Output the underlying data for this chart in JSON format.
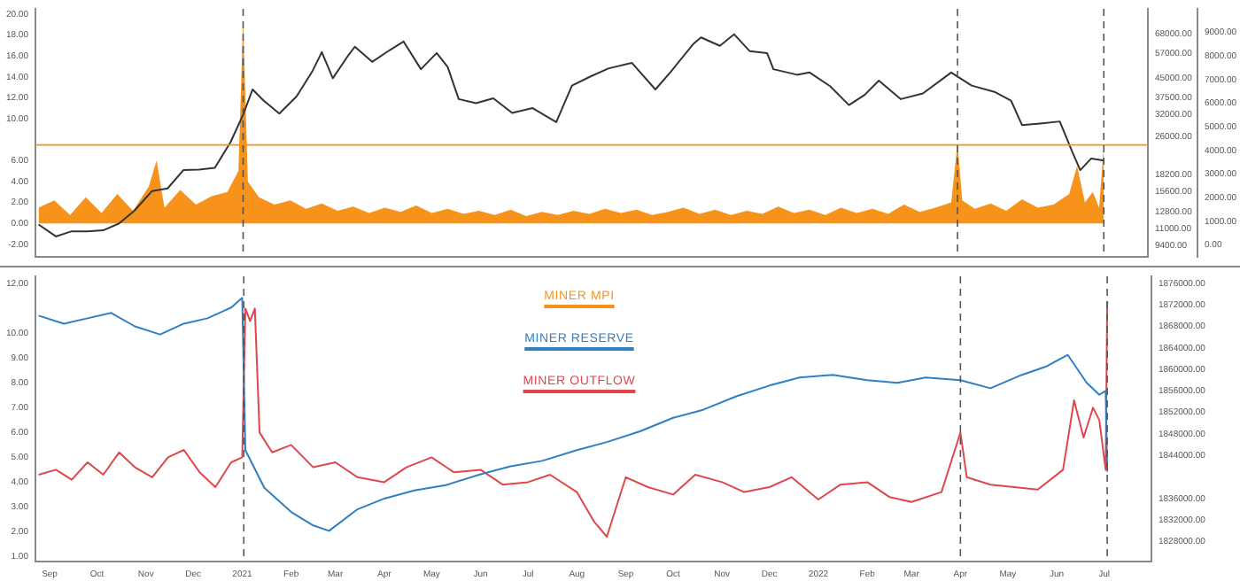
{
  "chart_data": [
    {
      "type": "line",
      "ylim": [
        -3.2,
        20.5
      ],
      "yticks": [
        {
          "value": -2,
          "label": "-2.00"
        },
        {
          "value": 0,
          "label": "0.00"
        },
        {
          "value": 2,
          "label": "2.00"
        },
        {
          "value": 4,
          "label": "4.00"
        },
        {
          "value": 6,
          "label": "6.00"
        },
        {
          "value": 10,
          "label": "10.00"
        },
        {
          "value": 12,
          "label": "12.00"
        },
        {
          "value": 14,
          "label": "14.00"
        },
        {
          "value": 16,
          "label": "16.00"
        },
        {
          "value": 18,
          "label": "18.00"
        },
        {
          "value": 20,
          "label": "20.00"
        }
      ],
      "y2lim": [
        8420,
        86300
      ],
      "log": "y2",
      "y2ticks": [
        {
          "value": 9400,
          "label": "9400.00"
        },
        {
          "value": 11000,
          "label": "11000.00"
        },
        {
          "value": 12800,
          "label": "12800.00"
        },
        {
          "value": 15600,
          "label": "15600.00"
        },
        {
          "value": 18200,
          "label": "18200.00"
        },
        {
          "value": 26000,
          "label": "26000.00"
        },
        {
          "value": 32000,
          "label": "32000.00"
        },
        {
          "value": 37500,
          "label": "37500.00"
        },
        {
          "value": 45000,
          "label": "45000.00"
        },
        {
          "value": 57000,
          "label": "57000.00"
        },
        {
          "value": 68000,
          "label": "68000.00"
        }
      ],
      "y3lim": [
        -500,
        10000
      ],
      "y3ticks": [
        {
          "value": 0,
          "label": "0.00"
        },
        {
          "value": 1000,
          "label": "1000.00"
        },
        {
          "value": 2000,
          "label": "2000.00"
        },
        {
          "value": 3000,
          "label": "3000.00"
        },
        {
          "value": 4000,
          "label": "4000.00"
        },
        {
          "value": 5000,
          "label": "5000.00"
        },
        {
          "value": 6000,
          "label": "6000.00"
        },
        {
          "value": 7000,
          "label": "7000.00"
        },
        {
          "value": 8000,
          "label": "8000.00"
        },
        {
          "value": 9000,
          "label": "9000.00"
        }
      ],
      "xlim": [
        "2020-08-23",
        "2022-07-31"
      ],
      "tick_labels": "y",
      "legend": "bottom",
      "grid": false,
      "ref_lines": [
        {
          "axis": "y",
          "value": 7.5,
          "color": "#f7931a",
          "line_style": "solid"
        },
        {
          "axis": "x",
          "value": "2021-01-02",
          "color": "#555555",
          "line_style": "dashed"
        },
        {
          "axis": "x",
          "value": "2022-04-01",
          "color": "#555555",
          "line_style": "dashed"
        },
        {
          "axis": "x",
          "value": "2022-07-03",
          "color": "#555555",
          "line_style": "dashed"
        }
      ],
      "series": [
        {
          "name": "MINER MPI",
          "type": "area",
          "color": "#f7931a",
          "x": [
            "2020-08-25",
            "2020-09-04",
            "2020-09-14",
            "2020-09-24",
            "2020-10-04",
            "2020-10-14",
            "2020-10-24",
            "2020-11-03",
            "2020-11-08",
            "2020-11-13",
            "2020-11-23",
            "2020-12-03",
            "2020-12-13",
            "2020-12-23",
            "2020-12-30",
            "2021-01-02",
            "2021-01-05",
            "2021-01-12",
            "2021-01-22",
            "2021-02-01",
            "2021-02-11",
            "2021-02-21",
            "2021-03-03",
            "2021-03-13",
            "2021-03-23",
            "2021-04-02",
            "2021-04-12",
            "2021-04-22",
            "2021-05-02",
            "2021-05-12",
            "2021-05-22",
            "2021-06-01",
            "2021-06-11",
            "2021-06-21",
            "2021-07-01",
            "2021-07-11",
            "2021-07-21",
            "2021-07-31",
            "2021-08-10",
            "2021-08-20",
            "2021-08-30",
            "2021-09-09",
            "2021-09-19",
            "2021-09-29",
            "2021-10-09",
            "2021-10-19",
            "2021-10-29",
            "2021-11-08",
            "2021-11-18",
            "2021-11-28",
            "2021-12-08",
            "2021-12-18",
            "2021-12-28",
            "2022-01-07",
            "2022-01-17",
            "2022-01-27",
            "2022-02-06",
            "2022-02-16",
            "2022-02-26",
            "2022-03-08",
            "2022-03-18",
            "2022-03-28",
            "2022-04-01",
            "2022-04-04",
            "2022-04-12",
            "2022-04-22",
            "2022-05-02",
            "2022-05-12",
            "2022-05-22",
            "2022-06-01",
            "2022-06-11",
            "2022-06-16",
            "2022-06-21",
            "2022-06-26",
            "2022-06-30",
            "2022-07-03"
          ],
          "values": [
            1.5,
            2.2,
            0.8,
            2.5,
            1.0,
            2.8,
            1.2,
            3.5,
            6.0,
            1.5,
            3.2,
            1.8,
            2.6,
            3.0,
            5.0,
            19.5,
            4.0,
            2.5,
            1.8,
            2.2,
            1.4,
            1.9,
            1.2,
            1.6,
            1.0,
            1.5,
            1.1,
            1.7,
            1.0,
            1.4,
            0.9,
            1.2,
            0.8,
            1.3,
            0.7,
            1.1,
            0.8,
            1.2,
            0.9,
            1.4,
            1.0,
            1.3,
            0.8,
            1.1,
            1.5,
            0.9,
            1.3,
            0.8,
            1.2,
            0.9,
            1.6,
            1.0,
            1.3,
            0.8,
            1.5,
            1.0,
            1.4,
            0.9,
            1.8,
            1.1,
            1.5,
            2.0,
            7.7,
            2.2,
            1.4,
            1.9,
            1.2,
            2.3,
            1.5,
            1.8,
            2.8,
            5.5,
            2.0,
            3.0,
            1.5,
            7.5
          ]
        },
        {
          "axis": "y2",
          "color": "#333333",
          "x": [
            "2020-08-25",
            "2020-09-05",
            "2020-09-15",
            "2020-09-25",
            "2020-10-05",
            "2020-10-15",
            "2020-10-25",
            "2020-11-05",
            "2020-11-15",
            "2020-11-25",
            "2020-12-05",
            "2020-12-15",
            "2020-12-25",
            "2021-01-02",
            "2021-01-08",
            "2021-01-15",
            "2021-01-25",
            "2021-02-05",
            "2021-02-15",
            "2021-02-21",
            "2021-02-28",
            "2021-03-10",
            "2021-03-14",
            "2021-03-25",
            "2021-04-05",
            "2021-04-14",
            "2021-04-25",
            "2021-05-05",
            "2021-05-12",
            "2021-05-19",
            "2021-05-30",
            "2021-06-10",
            "2021-06-22",
            "2021-07-05",
            "2021-07-20",
            "2021-07-30",
            "2021-08-10",
            "2021-08-22",
            "2021-09-06",
            "2021-09-21",
            "2021-10-01",
            "2021-10-15",
            "2021-10-20",
            "2021-11-01",
            "2021-11-10",
            "2021-11-20",
            "2021-12-01",
            "2021-12-05",
            "2021-12-20",
            "2021-12-28",
            "2022-01-10",
            "2022-01-22",
            "2022-02-01",
            "2022-02-10",
            "2022-02-24",
            "2022-03-10",
            "2022-03-28",
            "2022-04-10",
            "2022-04-25",
            "2022-05-05",
            "2022-05-12",
            "2022-05-25",
            "2022-06-05",
            "2022-06-13",
            "2022-06-18",
            "2022-06-25",
            "2022-07-03"
          ],
          "values": [
            11400,
            10200,
            10700,
            10700,
            10800,
            11500,
            13000,
            15600,
            16000,
            19000,
            19100,
            19400,
            24700,
            32000,
            40500,
            36500,
            32300,
            38000,
            48000,
            57500,
            45000,
            56000,
            60500,
            52500,
            58500,
            63500,
            49000,
            57000,
            50000,
            37000,
            35600,
            37300,
            32500,
            34000,
            29800,
            42000,
            45500,
            49300,
            52000,
            40500,
            48000,
            62000,
            66000,
            61000,
            68000,
            58000,
            57000,
            49000,
            46500,
            47500,
            41800,
            35000,
            38500,
            44000,
            37000,
            39000,
            47500,
            42000,
            39500,
            36500,
            29000,
            29500,
            30000,
            22500,
            19000,
            21200,
            20800
          ]
        }
      ]
    },
    {
      "type": "line",
      "ylim": [
        0.8,
        12.3
      ],
      "yticks": [
        {
          "value": 1,
          "label": "1.00"
        },
        {
          "value": 2,
          "label": "2.00"
        },
        {
          "value": 3,
          "label": "3.00"
        },
        {
          "value": 4,
          "label": "4.00"
        },
        {
          "value": 5,
          "label": "5.00"
        },
        {
          "value": 6,
          "label": "6.00"
        },
        {
          "value": 7,
          "label": "7.00"
        },
        {
          "value": 8,
          "label": "8.00"
        },
        {
          "value": 9,
          "label": "9.00"
        },
        {
          "value": 10,
          "label": "10.00"
        },
        {
          "value": 12,
          "label": "12.00"
        }
      ],
      "y2lim": [
        1824300,
        1877300
      ],
      "y2ticks": [
        {
          "value": 1828000,
          "label": "1828000.00"
        },
        {
          "value": 1832000,
          "label": "1832000.00"
        },
        {
          "value": 1836000,
          "label": "1836000.00"
        },
        {
          "value": 1844000,
          "label": "1844000.00"
        },
        {
          "value": 1848000,
          "label": "1848000.00"
        },
        {
          "value": 1852000,
          "label": "1852000.00"
        },
        {
          "value": 1856000,
          "label": "1856000.00"
        },
        {
          "value": 1860000,
          "label": "1860000.00"
        },
        {
          "value": 1864000,
          "label": "1864000.00"
        },
        {
          "value": 1868000,
          "label": "1868000.00"
        },
        {
          "value": 1872000,
          "label": "1872000.00"
        },
        {
          "value": 1876000,
          "label": "1876000.00"
        }
      ],
      "xlim": [
        "2020-08-23",
        "2022-07-31"
      ],
      "xticks": [
        {
          "value": "2020-09-01",
          "label": "Sep"
        },
        {
          "value": "2020-10-01",
          "label": "Oct"
        },
        {
          "value": "2020-11-01",
          "label": "Nov"
        },
        {
          "value": "2020-12-01",
          "label": "Dec"
        },
        {
          "value": "2021-01-01",
          "label": "2021"
        },
        {
          "value": "2021-02-01",
          "label": "Feb"
        },
        {
          "value": "2021-03-01",
          "label": "Mar"
        },
        {
          "value": "2021-04-01",
          "label": "Apr"
        },
        {
          "value": "2021-05-01",
          "label": "May"
        },
        {
          "value": "2021-06-01",
          "label": "Jun"
        },
        {
          "value": "2021-07-01",
          "label": "Jul"
        },
        {
          "value": "2021-08-01",
          "label": "Aug"
        },
        {
          "value": "2021-09-01",
          "label": "Sep"
        },
        {
          "value": "2021-10-01",
          "label": "Oct"
        },
        {
          "value": "2021-11-01",
          "label": "Nov"
        },
        {
          "value": "2021-12-01",
          "label": "Dec"
        },
        {
          "value": "2022-01-01",
          "label": "2022"
        },
        {
          "value": "2022-02-01",
          "label": "Feb"
        },
        {
          "value": "2022-03-01",
          "label": "Mar"
        },
        {
          "value": "2022-04-01",
          "label": "Apr"
        },
        {
          "value": "2022-05-01",
          "label": "May"
        },
        {
          "value": "2022-06-01",
          "label": "Jun"
        },
        {
          "value": "2022-07-01",
          "label": "Jul"
        }
      ],
      "legend": "top",
      "grid": false,
      "ref_lines": [
        {
          "axis": "x",
          "value": "2021-01-02",
          "color": "#555555",
          "line_style": "dashed"
        },
        {
          "axis": "x",
          "value": "2022-04-01",
          "color": "#555555",
          "line_style": "dashed"
        },
        {
          "axis": "x",
          "value": "2022-07-03",
          "color": "#555555",
          "line_style": "dashed"
        }
      ],
      "series": [
        {
          "name": "MINER RESERVE",
          "axis": "y2",
          "color": "#2f7fc1",
          "x": [
            "2020-08-25",
            "2020-09-10",
            "2020-09-25",
            "2020-10-10",
            "2020-10-25",
            "2020-11-10",
            "2020-11-25",
            "2020-12-10",
            "2020-12-25",
            "2021-01-01",
            "2021-01-03",
            "2021-01-15",
            "2021-02-01",
            "2021-02-15",
            "2021-02-25",
            "2021-03-15",
            "2021-04-01",
            "2021-04-20",
            "2021-05-10",
            "2021-06-01",
            "2021-06-20",
            "2021-07-10",
            "2021-08-01",
            "2021-08-20",
            "2021-09-10",
            "2021-10-01",
            "2021-10-20",
            "2021-11-10",
            "2021-12-01",
            "2021-12-20",
            "2022-01-10",
            "2022-02-01",
            "2022-02-20",
            "2022-03-10",
            "2022-04-01",
            "2022-04-20",
            "2022-05-10",
            "2022-05-25",
            "2022-06-08",
            "2022-06-20",
            "2022-06-28",
            "2022-07-02",
            "2022-07-03"
          ],
          "values": [
            1870000,
            1868500,
            1869500,
            1870500,
            1868000,
            1866500,
            1868500,
            1869500,
            1871500,
            1873300,
            1845000,
            1838000,
            1833500,
            1831000,
            1830000,
            1834000,
            1836000,
            1837500,
            1838500,
            1840500,
            1842000,
            1843000,
            1845000,
            1846500,
            1848500,
            1851000,
            1852500,
            1855000,
            1857000,
            1858500,
            1859000,
            1858000,
            1857500,
            1858500,
            1858000,
            1856500,
            1859000,
            1860500,
            1862700,
            1857500,
            1855300,
            1856000,
            1841000
          ]
        },
        {
          "name": "MINER OUTFLOW",
          "color": "#e0474c",
          "x": [
            "2020-08-25",
            "2020-09-05",
            "2020-09-15",
            "2020-09-25",
            "2020-10-05",
            "2020-10-15",
            "2020-10-25",
            "2020-11-05",
            "2020-11-15",
            "2020-11-25",
            "2020-12-05",
            "2020-12-15",
            "2020-12-25",
            "2021-01-01",
            "2021-01-03",
            "2021-01-06",
            "2021-01-09",
            "2021-01-12",
            "2021-01-20",
            "2021-02-01",
            "2021-02-15",
            "2021-03-01",
            "2021-03-15",
            "2021-04-01",
            "2021-04-15",
            "2021-05-01",
            "2021-05-15",
            "2021-06-01",
            "2021-06-15",
            "2021-07-01",
            "2021-07-15",
            "2021-08-01",
            "2021-08-12",
            "2021-08-20",
            "2021-09-01",
            "2021-09-15",
            "2021-10-01",
            "2021-10-15",
            "2021-11-01",
            "2021-11-15",
            "2021-12-01",
            "2021-12-15",
            "2022-01-01",
            "2022-01-15",
            "2022-02-01",
            "2022-02-15",
            "2022-03-01",
            "2022-03-20",
            "2022-04-01",
            "2022-04-05",
            "2022-04-20",
            "2022-05-05",
            "2022-05-20",
            "2022-06-05",
            "2022-06-12",
            "2022-06-18",
            "2022-06-24",
            "2022-06-28",
            "2022-07-01",
            "2022-07-02",
            "2022-07-03"
          ],
          "values": [
            4.3,
            4.5,
            4.1,
            4.8,
            4.3,
            5.2,
            4.6,
            4.2,
            5.0,
            5.3,
            4.4,
            3.8,
            4.8,
            5.0,
            11.0,
            10.5,
            11.0,
            6.0,
            5.2,
            5.5,
            4.6,
            4.8,
            4.2,
            4.0,
            4.6,
            5.0,
            4.4,
            4.5,
            3.9,
            4.0,
            4.3,
            3.6,
            2.4,
            1.8,
            4.2,
            3.8,
            3.5,
            4.3,
            4.0,
            3.6,
            3.8,
            4.2,
            3.3,
            3.9,
            4.0,
            3.4,
            3.2,
            3.6,
            6.0,
            4.2,
            3.9,
            3.8,
            3.7,
            4.5,
            7.3,
            5.8,
            7.0,
            6.5,
            5.0,
            4.5,
            11.3
          ]
        }
      ]
    }
  ]
}
